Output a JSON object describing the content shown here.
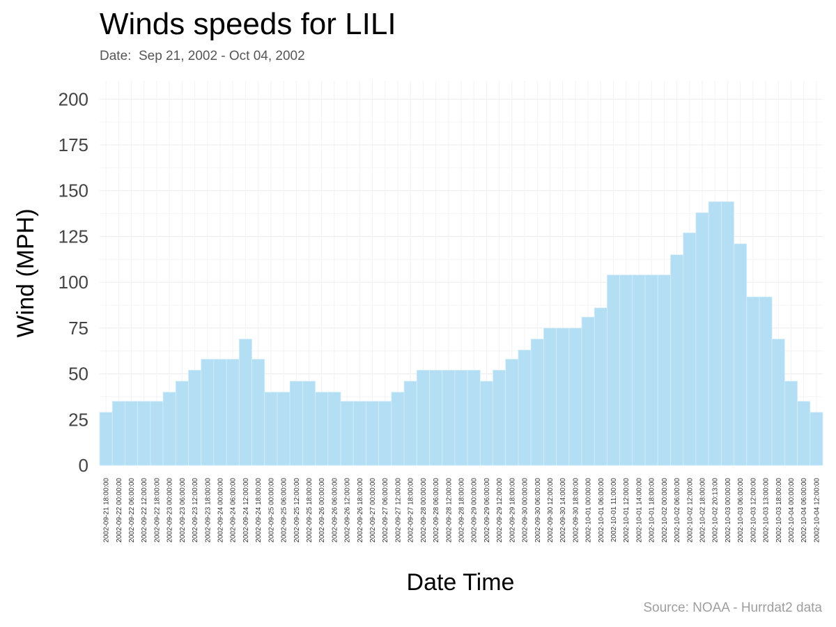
{
  "header": {
    "title": "Winds speeds for LILI",
    "subtitle": "Date:  Sep 21, 2002 - Oct 04, 2002"
  },
  "footer": {
    "caption": "Source: NOAA - Hurrdat2 data"
  },
  "colors": {
    "bar_fill": "#b3def3",
    "grid": "#ececec",
    "tick_text": "#444444"
  },
  "chart_data": {
    "type": "bar",
    "title": "Winds speeds for LILI",
    "subtitle": "Date:  Sep 21, 2002 - Oct 04, 2002",
    "xlabel": "Date Time",
    "ylabel": "Wind (MPH)",
    "ylim": [
      0,
      210
    ],
    "yticks": [
      0,
      25,
      50,
      75,
      100,
      125,
      150,
      175,
      200
    ],
    "grid": true,
    "legend": "none",
    "categories": [
      "2002-09-21 18:00:00",
      "2002-09-22 00:00:00",
      "2002-09-22 06:00:00",
      "2002-09-22 12:00:00",
      "2002-09-22 18:00:00",
      "2002-09-23 00:00:00",
      "2002-09-23 06:00:00",
      "2002-09-23 12:00:00",
      "2002-09-23 18:00:00",
      "2002-09-24 00:00:00",
      "2002-09-24 06:00:00",
      "2002-09-24 12:00:00",
      "2002-09-24 18:00:00",
      "2002-09-25 00:00:00",
      "2002-09-25 06:00:00",
      "2002-09-25 12:00:00",
      "2002-09-25 18:00:00",
      "2002-09-26 00:00:00",
      "2002-09-26 06:00:00",
      "2002-09-26 12:00:00",
      "2002-09-26 18:00:00",
      "2002-09-27 00:00:00",
      "2002-09-27 06:00:00",
      "2002-09-27 12:00:00",
      "2002-09-27 18:00:00",
      "2002-09-28 00:00:00",
      "2002-09-28 06:00:00",
      "2002-09-28 12:00:00",
      "2002-09-28 18:00:00",
      "2002-09-29 00:00:00",
      "2002-09-29 06:00:00",
      "2002-09-29 12:00:00",
      "2002-09-29 18:00:00",
      "2002-09-30 00:00:00",
      "2002-09-30 06:00:00",
      "2002-09-30 12:00:00",
      "2002-09-30 14:00:00",
      "2002-09-30 18:00:00",
      "2002-10-01 00:00:00",
      "2002-10-01 06:00:00",
      "2002-10-01 11:00:00",
      "2002-10-01 12:00:00",
      "2002-10-01 14:00:00",
      "2002-10-01 18:00:00",
      "2002-10-02 00:00:00",
      "2002-10-02 06:00:00",
      "2002-10-02 12:00:00",
      "2002-10-02 18:00:00",
      "2002-10-02 20:13:00",
      "2002-10-03 00:00:00",
      "2002-10-03 06:00:00",
      "2002-10-03 12:00:00",
      "2002-10-03 13:00:00",
      "2002-10-03 18:00:00",
      "2002-10-04 00:00:00",
      "2002-10-04 06:00:00",
      "2002-10-04 12:00:00"
    ],
    "values": [
      29,
      35,
      35,
      35,
      35,
      40,
      46,
      52,
      58,
      58,
      58,
      69,
      58,
      40,
      40,
      46,
      46,
      40,
      40,
      35,
      35,
      35,
      35,
      40,
      46,
      52,
      52,
      52,
      52,
      52,
      46,
      52,
      58,
      63,
      69,
      75,
      75,
      75,
      81,
      86,
      104,
      104,
      104,
      104,
      104,
      115,
      127,
      138,
      144,
      144,
      121,
      92,
      92,
      69,
      46,
      35,
      29
    ]
  }
}
